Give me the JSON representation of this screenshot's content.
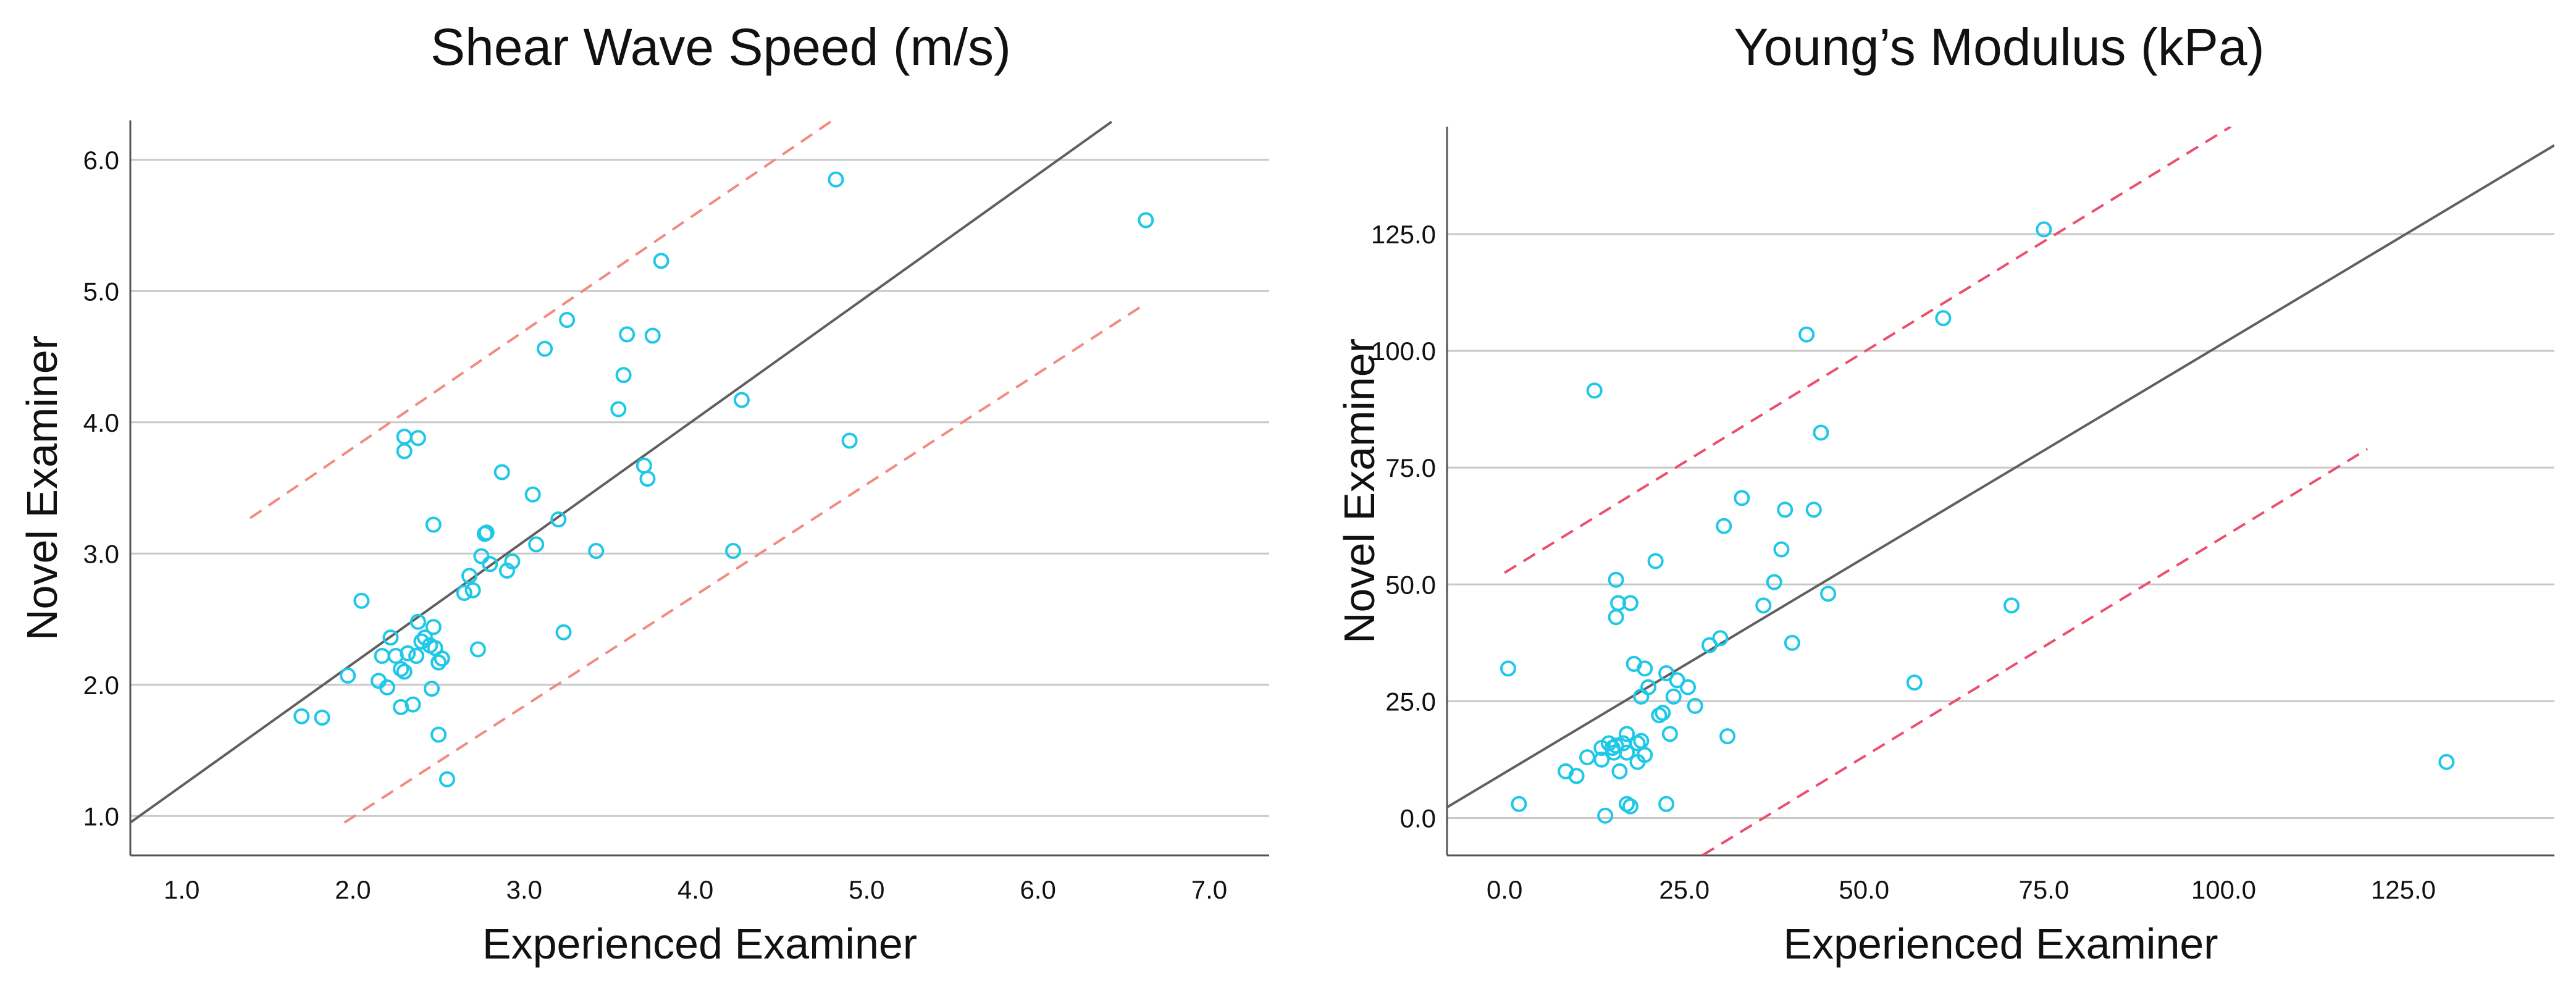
{
  "colors": {
    "points": "#1ec8e6",
    "fit": "#606060",
    "pred_left": "#f28a80",
    "pred_right": "#ec4f6e",
    "grid": "#c8c8c8",
    "axis": "#555555"
  },
  "chart_data": [
    {
      "type": "scatter",
      "title": "Shear Wave Speed (m/s)",
      "xlabel": "Experienced Examiner",
      "ylabel": "Novel Examiner",
      "xlim": [
        0.7,
        7.35
      ],
      "ylim": [
        0.7,
        6.3
      ],
      "xticks": [
        1.0,
        2.0,
        3.0,
        4.0,
        5.0,
        6.0,
        7.0
      ],
      "xtick_labels": [
        "1.0",
        "2.0",
        "3.0",
        "4.0",
        "5.0",
        "6.0",
        "7.0"
      ],
      "yticks": [
        1.0,
        2.0,
        3.0,
        4.0,
        5.0,
        6.0
      ],
      "ytick_labels": [
        "1.0",
        "2.0",
        "3.0",
        "4.0",
        "5.0",
        "6.0"
      ],
      "grid": "horizontal",
      "fit_line": [
        [
          0.7,
          0.95
        ],
        [
          6.43,
          6.29
        ]
      ],
      "prediction_lines": [
        [
          [
            1.4,
            3.27
          ],
          [
            4.8,
            6.3
          ]
        ],
        [
          [
            1.95,
            0.95
          ],
          [
            6.6,
            4.88
          ]
        ]
      ],
      "x": [
        1.7,
        1.82,
        1.97,
        2.05,
        2.15,
        2.17,
        2.2,
        2.22,
        2.25,
        2.28,
        2.28,
        2.3,
        2.32,
        2.35,
        2.37,
        2.38,
        2.4,
        2.42,
        2.45,
        2.47,
        2.48,
        2.5,
        2.5,
        2.52,
        2.55,
        2.3,
        2.3,
        2.38,
        2.47,
        2.65,
        2.68,
        2.7,
        2.73,
        2.75,
        2.77,
        2.78,
        2.8,
        2.87,
        2.9,
        2.93,
        3.05,
        3.07,
        3.2,
        3.23,
        3.12,
        3.25,
        3.42,
        3.55,
        3.58,
        3.6,
        3.7,
        3.72,
        3.75,
        3.8,
        4.22,
        4.27,
        4.9,
        4.82,
        6.63,
        2.46
      ],
      "y": [
        1.76,
        1.75,
        2.07,
        2.64,
        2.03,
        2.22,
        1.98,
        2.36,
        2.22,
        2.12,
        1.83,
        2.1,
        2.24,
        1.85,
        2.22,
        2.48,
        2.33,
        2.36,
        2.3,
        2.44,
        2.28,
        2.17,
        1.62,
        2.2,
        1.28,
        3.78,
        3.89,
        3.88,
        3.22,
        2.7,
        2.83,
        2.72,
        2.27,
        2.98,
        3.15,
        3.16,
        2.92,
        3.62,
        2.87,
        2.94,
        3.45,
        3.07,
        3.26,
        2.4,
        4.56,
        4.78,
        3.02,
        4.1,
        4.36,
        4.67,
        3.67,
        3.57,
        4.66,
        5.23,
        3.02,
        4.17,
        3.86,
        5.85,
        5.54,
        1.97
      ]
    },
    {
      "type": "scatter",
      "title": "Young’s Modulus (kPa)",
      "xlabel": "Experienced Examiner",
      "ylabel": "Novel Examiner",
      "xlim": [
        -8,
        146
      ],
      "ylim": [
        -8,
        148
      ],
      "xticks": [
        0,
        25,
        50,
        75,
        100,
        125
      ],
      "xtick_labels": [
        "0.0",
        "25.0",
        "50.0",
        "75.0",
        "100.0",
        "125.0"
      ],
      "yticks": [
        0,
        25,
        50,
        75,
        100,
        125
      ],
      "ytick_labels": [
        "0.0",
        "25.0",
        "50.0",
        "75.0",
        "100.0",
        "125.0"
      ],
      "grid": "horizontal",
      "fit_line": [
        [
          -8,
          2.3
        ],
        [
          146,
          144
        ]
      ],
      "prediction_lines": [
        [
          [
            0,
            52.5
          ],
          [
            101,
            148
          ]
        ],
        [
          [
            27.5,
            -8
          ],
          [
            120,
            79
          ]
        ]
      ],
      "x": [
        0.5,
        2,
        12.5,
        8.5,
        10,
        11.5,
        13.5,
        13.5,
        14.5,
        15,
        15.2,
        15.5,
        15.5,
        15.8,
        16,
        16.5,
        17,
        17,
        17.5,
        18,
        18.5,
        18.5,
        19,
        19,
        19.5,
        19.5,
        20,
        14,
        15.5,
        17,
        21,
        21.5,
        22,
        22.5,
        23,
        23.5,
        24,
        25.5,
        26.5,
        28.5,
        30.5,
        30,
        31,
        33,
        37.5,
        38.5,
        39,
        40,
        42,
        43,
        44,
        45,
        57,
        61,
        70.5,
        75,
        131,
        17.5,
        22.5,
        36
      ],
      "y": [
        32,
        3,
        91.5,
        10,
        9,
        13,
        15,
        12.5,
        16,
        15,
        14,
        51,
        43,
        46,
        10,
        16,
        14,
        18,
        46,
        33,
        16,
        12,
        16.5,
        26,
        13.5,
        32,
        28,
        0.5,
        15.5,
        3,
        55,
        22,
        22.5,
        31,
        18,
        26,
        29.5,
        28,
        24,
        37,
        62.5,
        38.5,
        17.5,
        68.5,
        50.5,
        57.5,
        66,
        37.5,
        103.5,
        66,
        82.5,
        48,
        29,
        107,
        45.5,
        126,
        12,
        2.5,
        3,
        45.5
      ]
    }
  ]
}
